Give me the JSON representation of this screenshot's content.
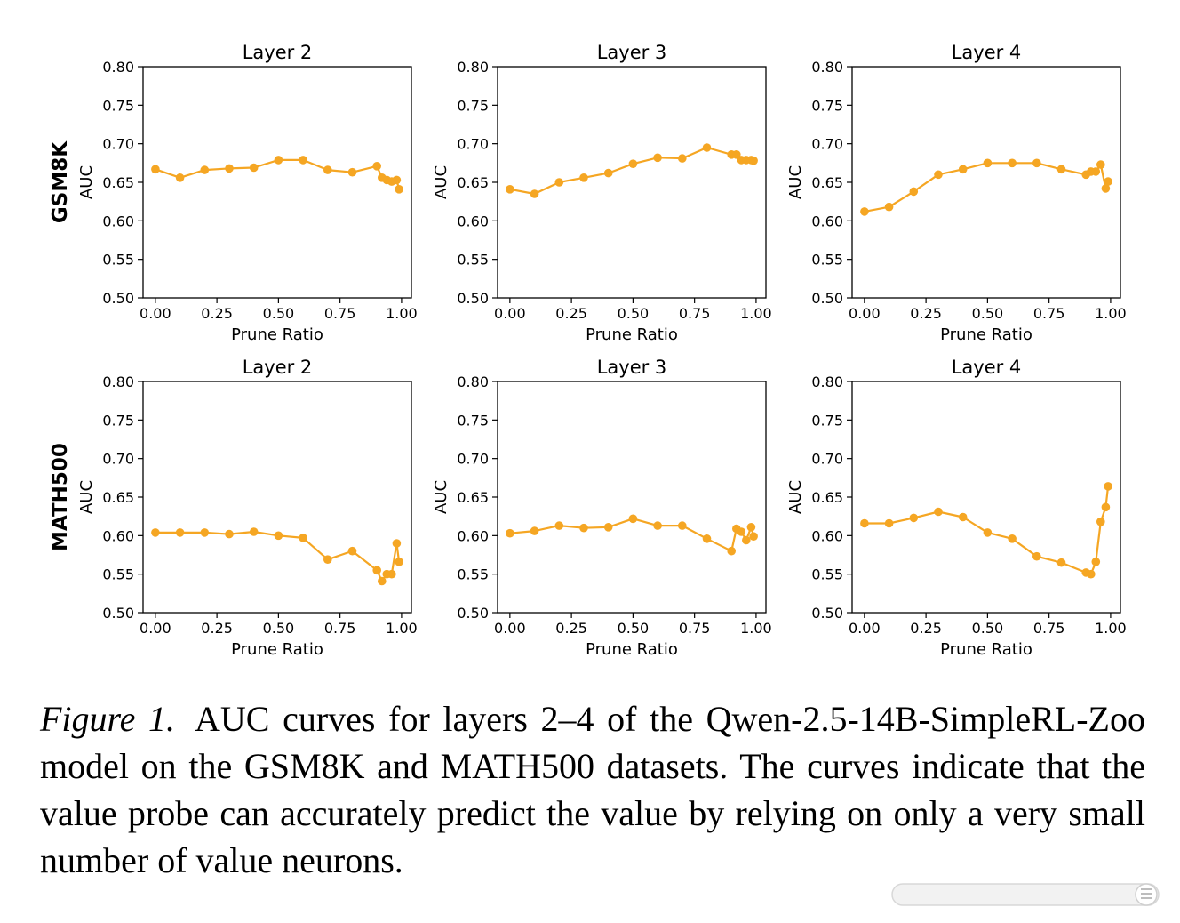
{
  "chart_data": [
    {
      "type": "line",
      "row_label": "GSM8K",
      "title": "Layer 2",
      "xlabel": "Prune Ratio",
      "ylabel": "AUC",
      "xlim": [
        -0.05,
        1.04
      ],
      "ylim": [
        0.5,
        0.8
      ],
      "xticks": [
        "0.00",
        "0.25",
        "0.50",
        "0.75",
        "1.00"
      ],
      "yticks": [
        "0.50",
        "0.55",
        "0.60",
        "0.65",
        "0.70",
        "0.75",
        "0.80"
      ],
      "color": "#f5a623",
      "x": [
        0.0,
        0.1,
        0.2,
        0.3,
        0.4,
        0.5,
        0.6,
        0.7,
        0.8,
        0.9,
        0.92,
        0.94,
        0.96,
        0.98,
        0.99
      ],
      "y": [
        0.667,
        0.656,
        0.666,
        0.668,
        0.669,
        0.679,
        0.679,
        0.666,
        0.663,
        0.671,
        0.656,
        0.653,
        0.651,
        0.653,
        0.641
      ]
    },
    {
      "type": "line",
      "row_label": "GSM8K",
      "title": "Layer 3",
      "xlabel": "Prune Ratio",
      "ylabel": "AUC",
      "xlim": [
        -0.05,
        1.04
      ],
      "ylim": [
        0.5,
        0.8
      ],
      "xticks": [
        "0.00",
        "0.25",
        "0.50",
        "0.75",
        "1.00"
      ],
      "yticks": [
        "0.50",
        "0.55",
        "0.60",
        "0.65",
        "0.70",
        "0.75",
        "0.80"
      ],
      "color": "#f5a623",
      "x": [
        0.0,
        0.1,
        0.2,
        0.3,
        0.4,
        0.5,
        0.6,
        0.7,
        0.8,
        0.9,
        0.92,
        0.94,
        0.96,
        0.98,
        0.99
      ],
      "y": [
        0.641,
        0.635,
        0.65,
        0.656,
        0.662,
        0.674,
        0.682,
        0.681,
        0.695,
        0.686,
        0.686,
        0.679,
        0.679,
        0.679,
        0.678
      ]
    },
    {
      "type": "line",
      "row_label": "GSM8K",
      "title": "Layer 4",
      "xlabel": "Prune Ratio",
      "ylabel": "AUC",
      "xlim": [
        -0.05,
        1.04
      ],
      "ylim": [
        0.5,
        0.8
      ],
      "xticks": [
        "0.00",
        "0.25",
        "0.50",
        "0.75",
        "1.00"
      ],
      "yticks": [
        "0.50",
        "0.55",
        "0.60",
        "0.65",
        "0.70",
        "0.75",
        "0.80"
      ],
      "color": "#f5a623",
      "x": [
        0.0,
        0.1,
        0.2,
        0.3,
        0.4,
        0.5,
        0.6,
        0.7,
        0.8,
        0.9,
        0.92,
        0.94,
        0.96,
        0.98,
        0.99
      ],
      "y": [
        0.612,
        0.618,
        0.638,
        0.66,
        0.667,
        0.675,
        0.675,
        0.675,
        0.667,
        0.66,
        0.664,
        0.664,
        0.673,
        0.642,
        0.651
      ]
    },
    {
      "type": "line",
      "row_label": "MATH500",
      "title": "Layer 2",
      "xlabel": "Prune Ratio",
      "ylabel": "AUC",
      "xlim": [
        -0.05,
        1.04
      ],
      "ylim": [
        0.5,
        0.8
      ],
      "xticks": [
        "0.00",
        "0.25",
        "0.50",
        "0.75",
        "1.00"
      ],
      "yticks": [
        "0.50",
        "0.55",
        "0.60",
        "0.65",
        "0.70",
        "0.75",
        "0.80"
      ],
      "color": "#f5a623",
      "x": [
        0.0,
        0.1,
        0.2,
        0.3,
        0.4,
        0.5,
        0.6,
        0.7,
        0.8,
        0.9,
        0.92,
        0.94,
        0.96,
        0.98,
        0.99
      ],
      "y": [
        0.604,
        0.604,
        0.604,
        0.602,
        0.605,
        0.6,
        0.597,
        0.569,
        0.58,
        0.555,
        0.541,
        0.55,
        0.55,
        0.59,
        0.566
      ]
    },
    {
      "type": "line",
      "row_label": "MATH500",
      "title": "Layer 3",
      "xlabel": "Prune Ratio",
      "ylabel": "AUC",
      "xlim": [
        -0.05,
        1.04
      ],
      "ylim": [
        0.5,
        0.8
      ],
      "xticks": [
        "0.00",
        "0.25",
        "0.50",
        "0.75",
        "1.00"
      ],
      "yticks": [
        "0.50",
        "0.55",
        "0.60",
        "0.65",
        "0.70",
        "0.75",
        "0.80"
      ],
      "color": "#f5a623",
      "x": [
        0.0,
        0.1,
        0.2,
        0.3,
        0.4,
        0.5,
        0.6,
        0.7,
        0.8,
        0.9,
        0.92,
        0.94,
        0.96,
        0.98,
        0.99
      ],
      "y": [
        0.603,
        0.606,
        0.613,
        0.61,
        0.611,
        0.622,
        0.613,
        0.613,
        0.596,
        0.58,
        0.609,
        0.605,
        0.594,
        0.611,
        0.599
      ]
    },
    {
      "type": "line",
      "row_label": "MATH500",
      "title": "Layer 4",
      "xlabel": "Prune Ratio",
      "ylabel": "AUC",
      "xlim": [
        -0.05,
        1.04
      ],
      "ylim": [
        0.5,
        0.8
      ],
      "xticks": [
        "0.00",
        "0.25",
        "0.50",
        "0.75",
        "1.00"
      ],
      "yticks": [
        "0.50",
        "0.55",
        "0.60",
        "0.65",
        "0.70",
        "0.75",
        "0.80"
      ],
      "color": "#f5a623",
      "x": [
        0.0,
        0.1,
        0.2,
        0.3,
        0.4,
        0.5,
        0.6,
        0.7,
        0.8,
        0.9,
        0.92,
        0.94,
        0.96,
        0.98,
        0.99
      ],
      "y": [
        0.616,
        0.616,
        0.623,
        0.631,
        0.624,
        0.604,
        0.596,
        0.573,
        0.565,
        0.552,
        0.55,
        0.566,
        0.618,
        0.637,
        0.664
      ]
    }
  ],
  "caption": {
    "label": "Figure 1.",
    "text": "AUC curves for layers 2–4 of the Qwen-2.5-14B-SimpleRL-Zoo model on the GSM8K and MATH500 datasets. The curves indicate that the value probe can accurately predict the value by relying on only a very small number of value neurons."
  }
}
